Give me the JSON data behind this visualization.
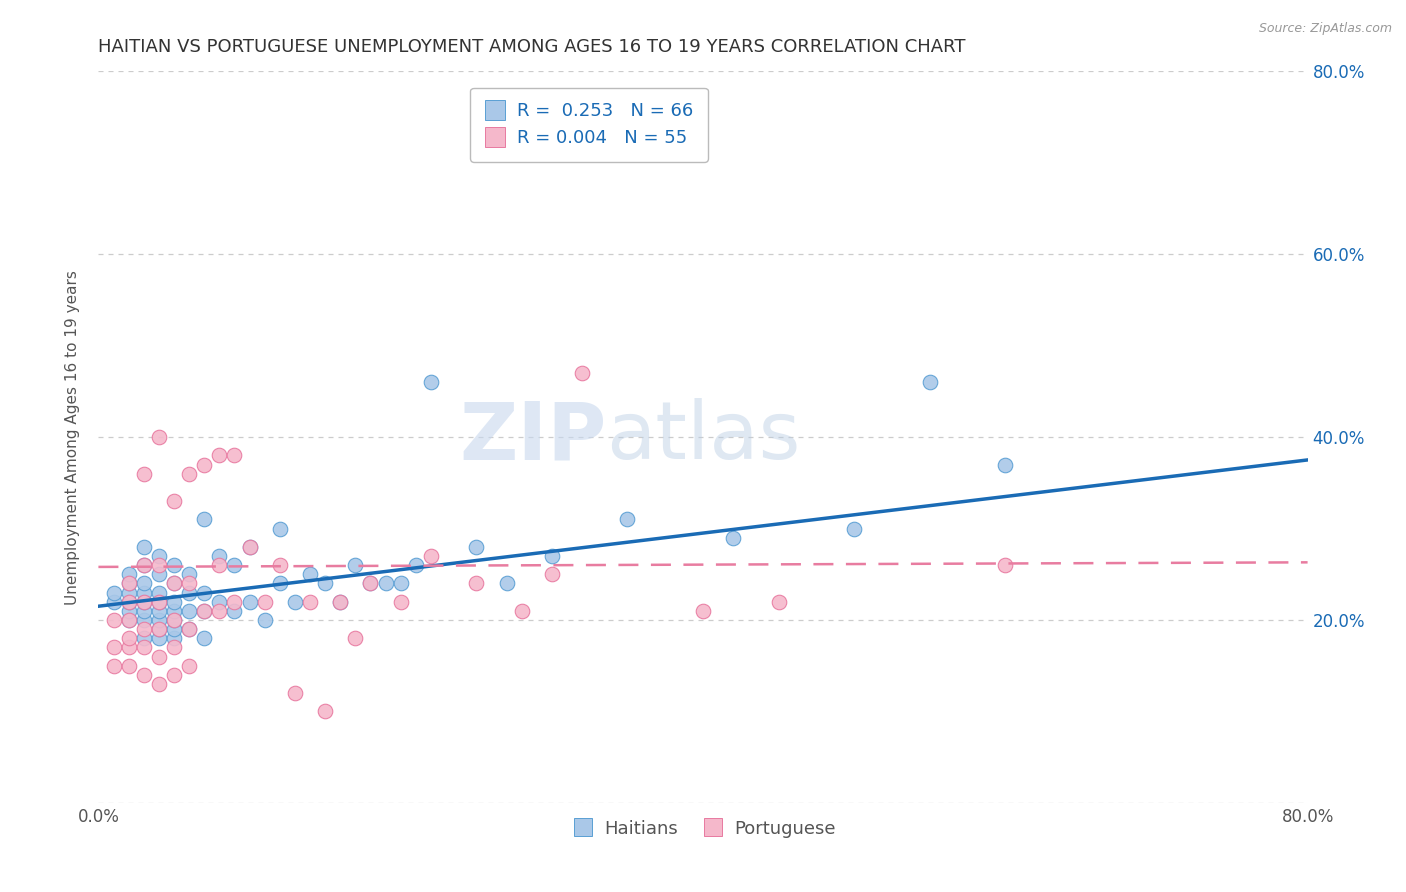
{
  "title": "HAITIAN VS PORTUGUESE UNEMPLOYMENT AMONG AGES 16 TO 19 YEARS CORRELATION CHART",
  "source": "Source: ZipAtlas.com",
  "ylabel": "Unemployment Among Ages 16 to 19 years",
  "xlim": [
    0,
    0.8
  ],
  "ylim": [
    0,
    0.8
  ],
  "ytick_positions": [
    0.0,
    0.2,
    0.4,
    0.6,
    0.8
  ],
  "ytick_labels": [
    "",
    "20.0%",
    "40.0%",
    "60.0%",
    "80.0%"
  ],
  "xtick_positions": [
    0.0,
    0.2,
    0.4,
    0.6,
    0.8
  ],
  "xtick_labels": [
    "0.0%",
    "",
    "",
    "",
    "80.0%"
  ],
  "haitian_color": "#aac8e8",
  "portuguese_color": "#f5b8cb",
  "haitian_edge_color": "#5a9fd4",
  "portuguese_edge_color": "#e879a0",
  "haitian_line_color": "#1a6bb5",
  "portuguese_line_color": "#e87ca0",
  "haitian_R": 0.253,
  "haitian_N": 66,
  "portuguese_R": 0.004,
  "portuguese_N": 55,
  "watermark_zip": "ZIP",
  "watermark_atlas": "atlas",
  "background_color": "#ffffff",
  "grid_color": "#cccccc",
  "title_fontsize": 13,
  "axis_label_fontsize": 11,
  "tick_fontsize": 12,
  "legend_fontsize": 13,
  "haitian_x": [
    0.01,
    0.01,
    0.02,
    0.02,
    0.02,
    0.02,
    0.02,
    0.02,
    0.03,
    0.03,
    0.03,
    0.03,
    0.03,
    0.03,
    0.03,
    0.03,
    0.04,
    0.04,
    0.04,
    0.04,
    0.04,
    0.04,
    0.04,
    0.04,
    0.05,
    0.05,
    0.05,
    0.05,
    0.05,
    0.05,
    0.05,
    0.06,
    0.06,
    0.06,
    0.06,
    0.07,
    0.07,
    0.07,
    0.07,
    0.08,
    0.08,
    0.09,
    0.09,
    0.1,
    0.1,
    0.11,
    0.12,
    0.12,
    0.13,
    0.14,
    0.15,
    0.16,
    0.17,
    0.18,
    0.19,
    0.2,
    0.21,
    0.22,
    0.25,
    0.27,
    0.3,
    0.35,
    0.42,
    0.5,
    0.55,
    0.6
  ],
  "haitian_y": [
    0.22,
    0.23,
    0.2,
    0.21,
    0.22,
    0.23,
    0.24,
    0.25,
    0.18,
    0.2,
    0.21,
    0.22,
    0.23,
    0.24,
    0.26,
    0.28,
    0.18,
    0.19,
    0.2,
    0.21,
    0.22,
    0.23,
    0.25,
    0.27,
    0.18,
    0.19,
    0.2,
    0.21,
    0.22,
    0.24,
    0.26,
    0.19,
    0.21,
    0.23,
    0.25,
    0.18,
    0.21,
    0.23,
    0.31,
    0.22,
    0.27,
    0.21,
    0.26,
    0.22,
    0.28,
    0.2,
    0.24,
    0.3,
    0.22,
    0.25,
    0.24,
    0.22,
    0.26,
    0.24,
    0.24,
    0.24,
    0.26,
    0.46,
    0.28,
    0.24,
    0.27,
    0.31,
    0.29,
    0.3,
    0.46,
    0.37
  ],
  "portuguese_x": [
    0.01,
    0.01,
    0.01,
    0.02,
    0.02,
    0.02,
    0.02,
    0.02,
    0.02,
    0.03,
    0.03,
    0.03,
    0.03,
    0.03,
    0.03,
    0.04,
    0.04,
    0.04,
    0.04,
    0.04,
    0.04,
    0.05,
    0.05,
    0.05,
    0.05,
    0.05,
    0.06,
    0.06,
    0.06,
    0.06,
    0.07,
    0.07,
    0.08,
    0.08,
    0.08,
    0.09,
    0.09,
    0.1,
    0.11,
    0.12,
    0.13,
    0.14,
    0.15,
    0.16,
    0.17,
    0.18,
    0.2,
    0.22,
    0.25,
    0.28,
    0.3,
    0.32,
    0.4,
    0.45,
    0.6
  ],
  "portuguese_y": [
    0.15,
    0.17,
    0.2,
    0.15,
    0.17,
    0.18,
    0.2,
    0.22,
    0.24,
    0.14,
    0.17,
    0.19,
    0.22,
    0.26,
    0.36,
    0.13,
    0.16,
    0.19,
    0.22,
    0.26,
    0.4,
    0.14,
    0.17,
    0.2,
    0.24,
    0.33,
    0.15,
    0.19,
    0.24,
    0.36,
    0.21,
    0.37,
    0.21,
    0.26,
    0.38,
    0.22,
    0.38,
    0.28,
    0.22,
    0.26,
    0.12,
    0.22,
    0.1,
    0.22,
    0.18,
    0.24,
    0.22,
    0.27,
    0.24,
    0.21,
    0.25,
    0.47,
    0.21,
    0.22,
    0.26
  ]
}
